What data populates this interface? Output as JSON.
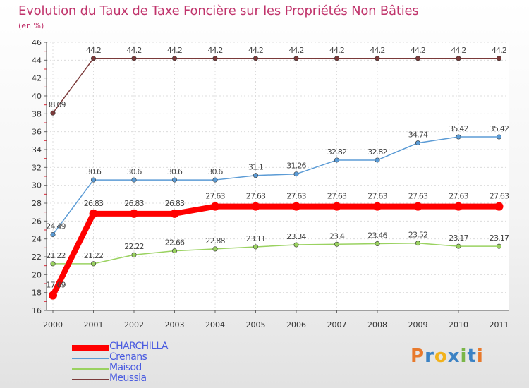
{
  "chart_data": {
    "type": "line",
    "title": "Evolution du Taux de Taxe Foncière sur les Propriétés Non Bâties",
    "ylabel": "(en %)",
    "ylim": [
      16,
      46
    ],
    "yticks": [
      "16",
      "18",
      "20",
      "22",
      "24",
      "26",
      "28",
      "30",
      "32",
      "34",
      "36",
      "38",
      "40",
      "42",
      "44",
      "46"
    ],
    "categories": [
      "2000",
      "2001",
      "2002",
      "2003",
      "2004",
      "2005",
      "2006",
      "2007",
      "2008",
      "2009",
      "2010",
      "2011"
    ],
    "grid": true,
    "legend_position": "bottom-left",
    "series": [
      {
        "name": "CHARCHILLA",
        "color": "#ff0000",
        "values": [
          17.69,
          26.83,
          26.83,
          26.83,
          27.63,
          27.63,
          27.63,
          27.63,
          27.63,
          27.63,
          27.63,
          27.63
        ],
        "labels": [
          "17.69",
          "26.83",
          "26.83",
          "26.83",
          "27.63",
          "27.63",
          "27.63",
          "27.63",
          "27.63",
          "27.63",
          "27.63",
          "27.63"
        ]
      },
      {
        "name": "Crenans",
        "color": "#5b9bd5",
        "values": [
          24.49,
          30.6,
          30.6,
          30.6,
          30.6,
          31.1,
          31.26,
          32.82,
          32.82,
          34.74,
          35.42,
          35.42
        ],
        "labels": [
          "24.49",
          "30.6",
          "30.6",
          "30.6",
          "30.6",
          "31.1",
          "31.26",
          "32.82",
          "32.82",
          "34.74",
          "35.42",
          "35.42"
        ]
      },
      {
        "name": "Maisod",
        "color": "#9ad260",
        "values": [
          21.22,
          21.22,
          22.22,
          22.66,
          22.88,
          23.11,
          23.34,
          23.4,
          23.46,
          23.52,
          23.17,
          23.17
        ],
        "labels": [
          "21.22",
          "21.22",
          "22.22",
          "22.66",
          "22.88",
          "23.11",
          "23.34",
          "23.4",
          "23.46",
          "23.52",
          "23.17",
          "23.17"
        ]
      },
      {
        "name": "Meussia",
        "color": "#7b3a3a",
        "values": [
          38.09,
          44.2,
          44.2,
          44.2,
          44.2,
          44.2,
          44.2,
          44.2,
          44.2,
          44.2,
          44.2,
          44.2
        ],
        "labels": [
          "38.09",
          "44.2",
          "44.2",
          "44.2",
          "44.2",
          "44.2",
          "44.2",
          "44.2",
          "44.2",
          "44.2",
          "44.2",
          "44.2"
        ]
      }
    ]
  },
  "logo": {
    "text": "Proxiti",
    "letters": [
      "P",
      "r",
      "o",
      "x",
      "i",
      "t",
      "i"
    ],
    "colors": [
      "#e8792b",
      "#3b82c4",
      "#f2b21b",
      "#3b82c4",
      "#7ab648",
      "#3b82c4",
      "#e8792b"
    ]
  }
}
